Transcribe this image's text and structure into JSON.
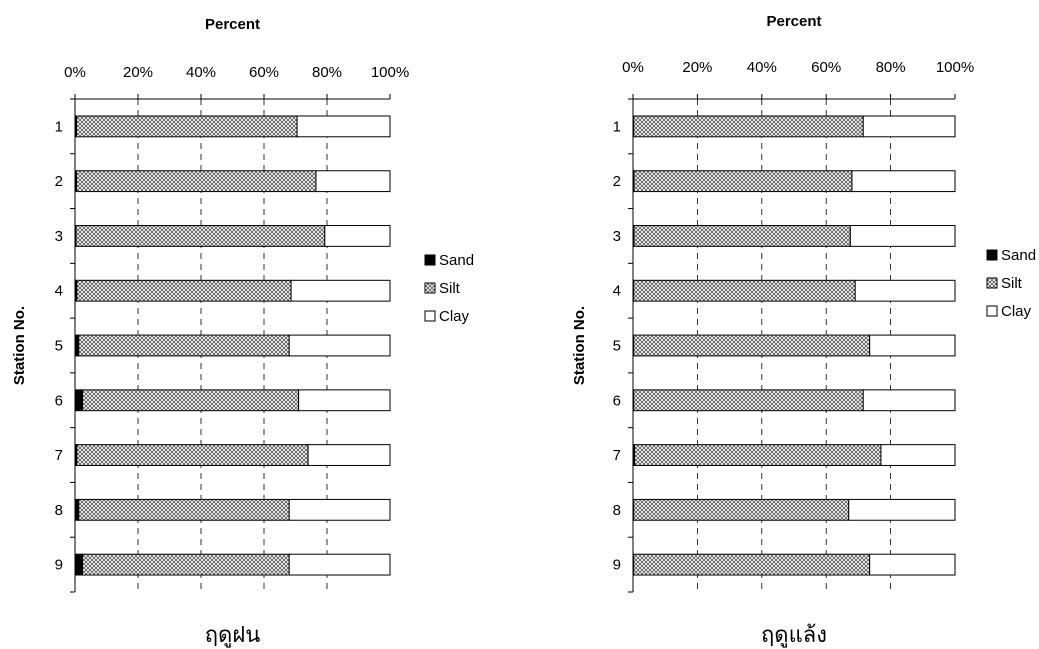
{
  "chart_data": [
    {
      "type": "bar",
      "orientation": "horizontal",
      "stacked": true,
      "title": "Percent",
      "ylabel": "Station No.",
      "caption": "ฤดูฝน",
      "categories": [
        "1",
        "2",
        "3",
        "4",
        "5",
        "6",
        "7",
        "8",
        "9"
      ],
      "xlim": [
        0,
        100
      ],
      "xticks": [
        "0%",
        "20%",
        "40%",
        "60%",
        "80%",
        "100%"
      ],
      "series": [
        {
          "name": "Sand",
          "values": [
            0.5,
            0.5,
            0.3,
            0.6,
            1.2,
            2.4,
            0.6,
            1.2,
            2.4
          ],
          "color": "#000000"
        },
        {
          "name": "Silt",
          "values": [
            70,
            76,
            79,
            68,
            66.8,
            68.6,
            73.4,
            66.8,
            65.6
          ],
          "color": "pattern"
        },
        {
          "name": "Clay",
          "values": [
            29.5,
            23.5,
            20.7,
            31.4,
            32,
            29,
            26,
            32,
            32
          ],
          "color": "#ffffff"
        }
      ],
      "legend_position": "right",
      "grid": "vertical-dashed"
    },
    {
      "type": "bar",
      "orientation": "horizontal",
      "stacked": true,
      "title": "Percent",
      "ylabel": "Station No.",
      "caption": "ฤดูแล้ง",
      "categories": [
        "1",
        "2",
        "3",
        "4",
        "5",
        "6",
        "7",
        "8",
        "9"
      ],
      "xlim": [
        0,
        100
      ],
      "xticks": [
        "0%",
        "20%",
        "40%",
        "60%",
        "80%",
        "100%"
      ],
      "series": [
        {
          "name": "Sand",
          "values": [
            0.2,
            0.3,
            0.3,
            0.2,
            0.2,
            0.2,
            0.5,
            0.2,
            0.2
          ],
          "color": "#000000"
        },
        {
          "name": "Silt",
          "values": [
            71.3,
            67.7,
            67.2,
            68.8,
            73.3,
            71.3,
            76.5,
            66.8,
            73.3
          ],
          "color": "pattern"
        },
        {
          "name": "Clay",
          "values": [
            28.5,
            32,
            32.5,
            31,
            26.5,
            28.5,
            23,
            33,
            26.5
          ],
          "color": "#ffffff"
        }
      ],
      "legend_position": "right",
      "grid": "vertical-dashed"
    }
  ],
  "legend_labels": [
    "Sand",
    "Silt",
    "Clay"
  ]
}
